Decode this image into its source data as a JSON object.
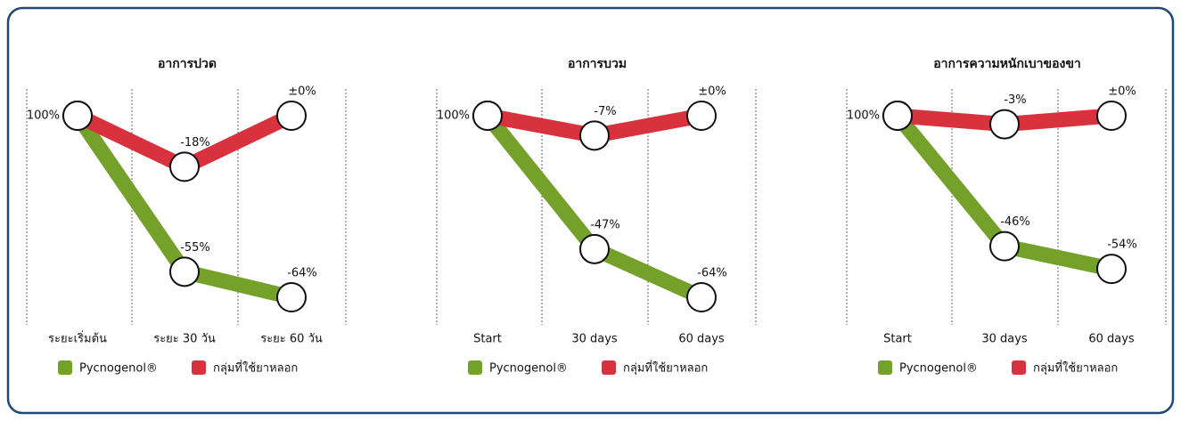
{
  "chart_data": [
    {
      "type": "line",
      "title": "อาการปวด",
      "categories": [
        "ระยะเริ่มต้น",
        "ระยะ 30 วัน",
        "ระยะ 60 วัน"
      ],
      "start_label": "100%",
      "series": [
        {
          "name": "Pycnogenol®",
          "color": "#74a12a",
          "values": [
            0,
            -55,
            -64
          ],
          "value_labels": [
            null,
            "-55%",
            "-64%"
          ]
        },
        {
          "name": "กลุ่มที่ใช้ยาหลอก",
          "color": "#d9323f",
          "values": [
            0,
            -18,
            0
          ],
          "value_labels": [
            null,
            "-18%",
            "±0%"
          ]
        }
      ],
      "ylim": [
        -64,
        0
      ]
    },
    {
      "type": "line",
      "title": "อาการบวม",
      "categories": [
        "Start",
        "30 days",
        "60 days"
      ],
      "start_label": "100%",
      "series": [
        {
          "name": "Pycnogenol®",
          "color": "#74a12a",
          "values": [
            0,
            -47,
            -64
          ],
          "value_labels": [
            null,
            "-47%",
            "-64%"
          ]
        },
        {
          "name": "กลุ่มที่ใช้ยาหลอก",
          "color": "#d9323f",
          "values": [
            0,
            -7,
            0
          ],
          "value_labels": [
            null,
            "-7%",
            "±0%"
          ]
        }
      ],
      "ylim": [
        -64,
        0
      ]
    },
    {
      "type": "line",
      "title": "อาการความหนักเบาของขา",
      "categories": [
        "Start",
        "30 days",
        "60 days"
      ],
      "start_label": "100%",
      "series": [
        {
          "name": "Pycnogenol®",
          "color": "#74a12a",
          "values": [
            0,
            -46,
            -54
          ],
          "value_labels": [
            null,
            "-46%",
            "-54%"
          ]
        },
        {
          "name": "กลุ่มที่ใช้ยาหลอก",
          "color": "#d9323f",
          "values": [
            0,
            -3,
            0
          ],
          "value_labels": [
            null,
            "-3%",
            "±0%"
          ]
        }
      ],
      "ylim": [
        -64,
        0
      ]
    }
  ]
}
